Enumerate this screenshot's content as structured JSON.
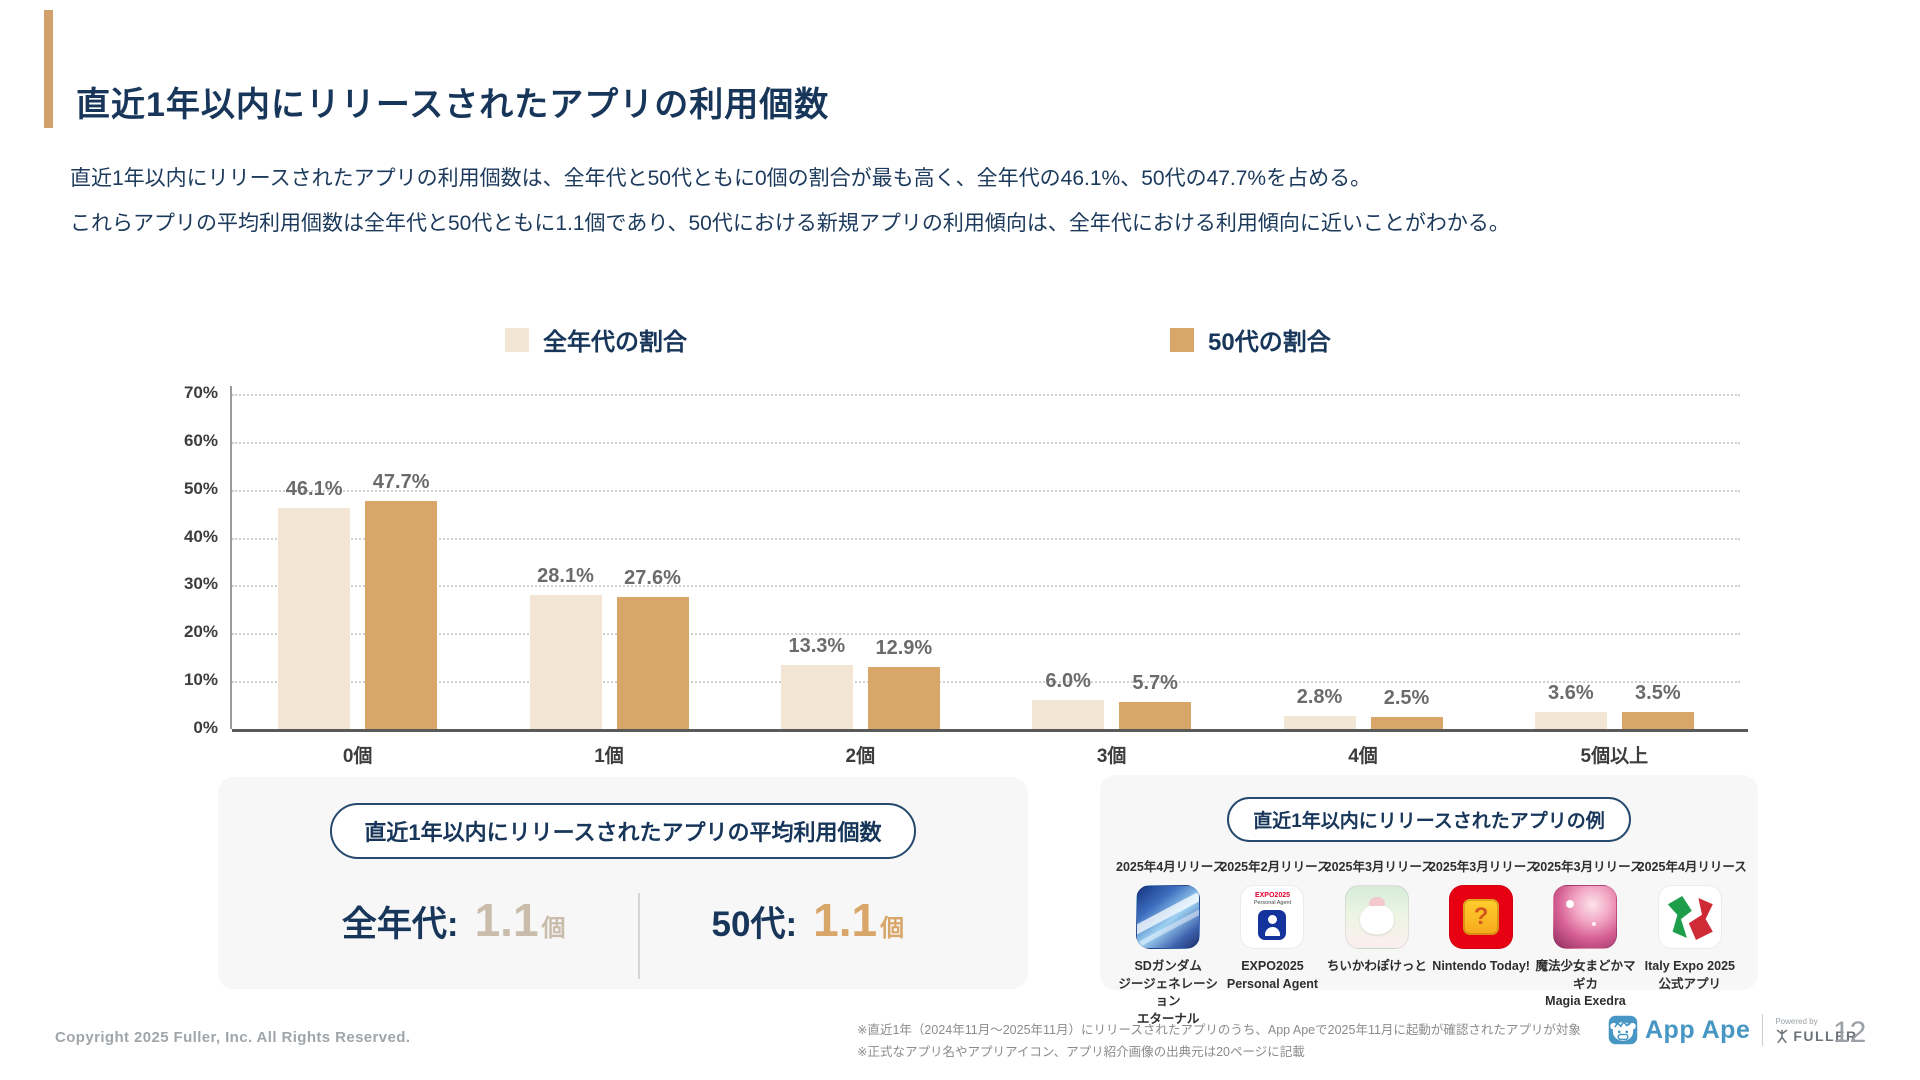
{
  "slide": {
    "title": "直近1年以内にリリースされたアプリの利用個数",
    "description_lines": [
      "直近1年以内にリリースされたアプリの利用個数は、全年代と50代ともに0個の割合が最も高く、全年代の46.1%、50代の47.7%を占める。",
      "これらアプリの平均利用個数は全年代と50代ともに1.1個であり、50代における新規アプリの利用傾向は、全年代における利用傾向に近いことがわかる。"
    ]
  },
  "chart_data": {
    "type": "bar",
    "title": "",
    "xlabel": "",
    "ylabel": "",
    "categories": [
      "0個",
      "1個",
      "2個",
      "3個",
      "4個",
      "5個以上"
    ],
    "series": [
      {
        "name": "全年代の割合",
        "color": "#f3e5d4",
        "values": [
          46.1,
          28.1,
          13.3,
          6.0,
          2.8,
          3.6
        ]
      },
      {
        "name": "50代の割合",
        "color": "#d9a66a",
        "values": [
          47.7,
          27.6,
          12.9,
          5.7,
          2.5,
          3.5
        ]
      }
    ],
    "value_labels": [
      [
        "46.1%",
        "47.7%"
      ],
      [
        "28.1%",
        "27.6%"
      ],
      [
        "13.3%",
        "12.9%"
      ],
      [
        "6.0%",
        "5.7%"
      ],
      [
        "2.8%",
        "2.5%"
      ],
      [
        "3.6%",
        "3.5%"
      ]
    ],
    "ylim": [
      0,
      70
    ],
    "yticks": [
      "0%",
      "10%",
      "20%",
      "30%",
      "40%",
      "50%",
      "60%",
      "70%"
    ],
    "grid": "horizontal-dotted",
    "legend_position": "top"
  },
  "average_card": {
    "header": "直近1年以内にリリースされたアプリの平均利用個数",
    "items": [
      {
        "label": "全年代:",
        "value": "1.1",
        "unit": "個",
        "value_color": "#c9bcab"
      },
      {
        "label": "50代:",
        "value": "1.1",
        "unit": "個",
        "value_color": "#d9a66a"
      }
    ]
  },
  "examples_card": {
    "header": "直近1年以内にリリースされたアプリの例",
    "apps": [
      {
        "release": "2025年4月リリース",
        "name": "SDガンダム\nジージェネレーション\nエターナル",
        "icon": "sd-gundam"
      },
      {
        "release": "2025年2月リリース",
        "name": "EXPO2025\nPersonal Agent",
        "icon": "expo2025-personal-agent",
        "icon_text_top": "EXPO2025",
        "icon_text_sub": "Personal Agent"
      },
      {
        "release": "2025年3月リリース",
        "name": "ちいかわぽけっと",
        "icon": "chiikawa-pocket"
      },
      {
        "release": "2025年3月リリース",
        "name": "Nintendo Today!",
        "icon": "nintendo-today",
        "icon_glyph": "?"
      },
      {
        "release": "2025年3月リリース",
        "name": "魔法少女まどかマギカ\nMagia Exedra",
        "icon": "madoka-magica-magia-exedra"
      },
      {
        "release": "2025年4月リリース",
        "name": "Italy Expo 2025\n公式アプリ",
        "icon": "italy-expo-2025"
      }
    ]
  },
  "footer": {
    "copyright": "Copyright 2025 Fuller, Inc. All Rights Reserved.",
    "notes": [
      "※直近1年（2024年11月〜2025年11月）にリリースされたアプリのうち、App Apeで2025年11月に起動が確認されたアプリが対象",
      "※正式なアプリ名やアプリアイコン、アプリ紹介画像の出典元は20ページに記載"
    ],
    "brand": {
      "name": "App Ape",
      "powered_by": "Powered by",
      "company": "FULLER"
    },
    "page_number": "12"
  },
  "colors": {
    "accent_tan": "#d2a06a",
    "navy_text": "#17365a",
    "series_all_ages": "#f3e5d4",
    "series_50s": "#d9a66a",
    "brand_blue": "#4796c3"
  }
}
